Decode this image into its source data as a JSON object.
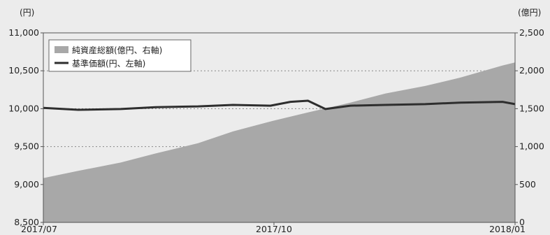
{
  "chart_data": {
    "type": "area+line",
    "units": {
      "left": "(円)",
      "right": "(億円)"
    },
    "y_left": {
      "min": 8500,
      "max": 11000,
      "ticks": [
        "8,500",
        "9,000",
        "9,500",
        "10,000",
        "10,500",
        "11,000"
      ]
    },
    "y_right": {
      "min": 0,
      "max": 2500,
      "ticks": [
        "0",
        "500",
        "1,000",
        "1,500",
        "2,000",
        "2,500"
      ]
    },
    "x_ticks": [
      "2017/07",
      "2017/10",
      "2018/01"
    ],
    "grid": "dotted horizontal at 9,500, 10,000 and 10,500",
    "legend": {
      "position": "top-left",
      "items": [
        {
          "label": "純資産総額(億円、右軸)",
          "style": "area",
          "color": "#a8a8a8"
        },
        {
          "label": "基準価額(円、左軸)",
          "style": "line",
          "color": "#2e2e2e"
        }
      ]
    },
    "series": [
      {
        "name": "純資産総額(億円、右軸)",
        "axis": "right",
        "type": "area",
        "x": [
          "2017-07-01",
          "2017-07-15",
          "2017-08-01",
          "2017-08-15",
          "2017-09-01",
          "2017-09-15",
          "2017-10-01",
          "2017-10-15",
          "2017-11-01",
          "2017-11-15",
          "2017-12-01",
          "2017-12-15",
          "2018-01-01",
          "2018-01-06"
        ],
        "values": [
          585,
          680,
          790,
          910,
          1045,
          1200,
          1340,
          1450,
          1580,
          1700,
          1800,
          1910,
          2070,
          2110
        ]
      },
      {
        "name": "基準価額(円、左軸)",
        "axis": "left",
        "type": "line",
        "x": [
          "2017-07-01",
          "2017-07-15",
          "2017-08-01",
          "2017-08-15",
          "2017-09-01",
          "2017-09-15",
          "2017-09-30",
          "2017-10-08",
          "2017-10-15",
          "2017-10-22",
          "2017-11-01",
          "2017-11-15",
          "2017-12-01",
          "2017-12-15",
          "2018-01-01",
          "2018-01-06"
        ],
        "values": [
          10010,
          9985,
          9995,
          10020,
          10030,
          10050,
          10040,
          10090,
          10105,
          9995,
          10040,
          10050,
          10060,
          10080,
          10090,
          10060
        ]
      }
    ]
  }
}
